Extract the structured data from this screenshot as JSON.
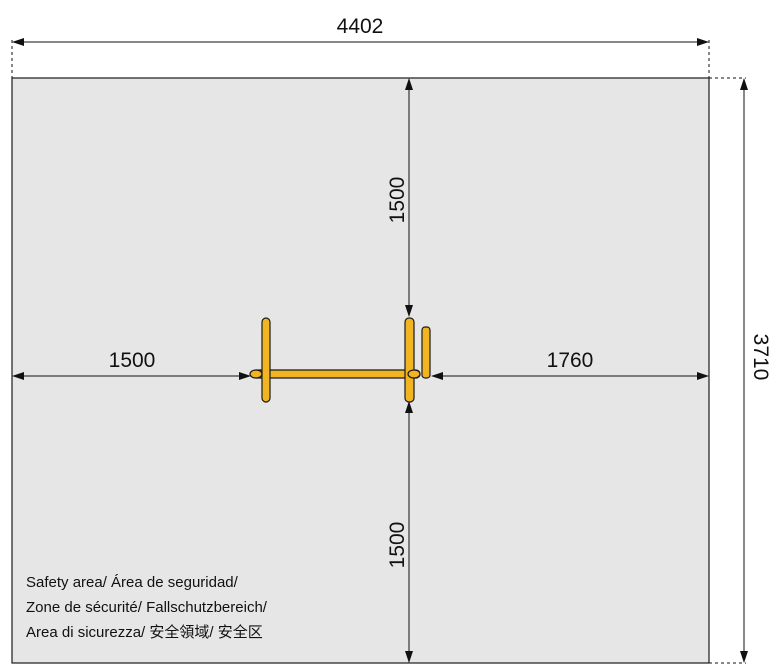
{
  "dimensions": {
    "total_width": "4402",
    "total_depth": "3710",
    "top_clearance": "1500",
    "bottom_clearance": "1500",
    "left_clearance": "1500",
    "right_clearance": "1760"
  },
  "legend": {
    "line1": "Safety area/ Área de seguridad/",
    "line2": "Zone de sécurité/ Fallschutzbereich/",
    "line3": "Area di sicurezza/ 安全領域/ 安全区"
  },
  "colors": {
    "safety_area_fill": "#e6e6e6",
    "equipment_fill": "#f1b521",
    "equipment_outline": "#1a1a1a",
    "line": "#111111"
  }
}
